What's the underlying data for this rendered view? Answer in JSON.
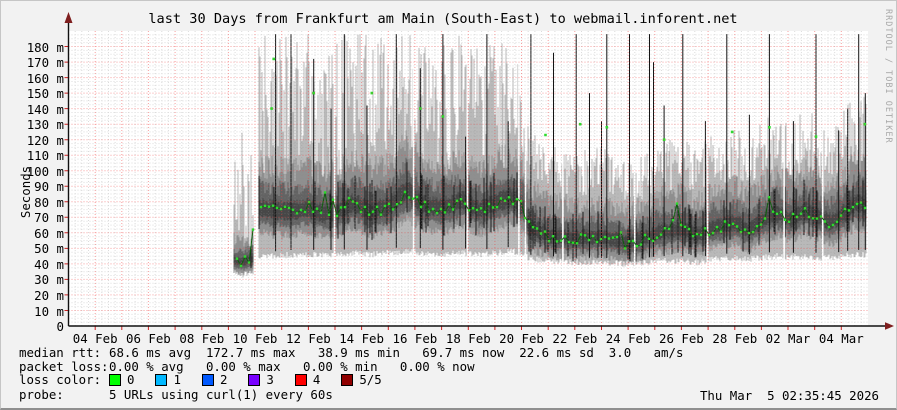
{
  "header": {
    "title": "last 30 Days from Frankfurt am Main (South-East) to webmail.inforent.net"
  },
  "watermark": "RRDTOOL / TOBI OETIKER",
  "footer": {
    "rows": [
      {
        "label": "median rtt:",
        "text": "68.6 ms avg  172.7 ms max   38.9 ms min   69.7 ms now  22.6 ms sd  3.0   am/s"
      },
      {
        "label": "packet loss:",
        "text": "0.00 % avg   0.00 % max   0.00 % min   0.00 % now"
      }
    ],
    "loss_color_label": "loss color:",
    "loss_colors": [
      {
        "label": "0",
        "color": "#00ff00"
      },
      {
        "label": "1",
        "color": "#00b8ff"
      },
      {
        "label": "2",
        "color": "#0059ff"
      },
      {
        "label": "3",
        "color": "#7800ff"
      },
      {
        "label": "4",
        "color": "#ff0000"
      },
      {
        "label": "5/5",
        "color": "#900000"
      }
    ],
    "probe_label": "probe:",
    "probe_text": "5 URLs using curl(1) every 60s",
    "timestamp": "Thu Mar  5 02:35:45 2026"
  },
  "chart_data": {
    "type": "area",
    "title": "last 30 Days from Frankfurt am Main (South-East) to webmail.inforent.net",
    "ylabel": "Seconds",
    "xlabel": "",
    "unit": "milliseconds",
    "ylim_ms": [
      0,
      190
    ],
    "x_window_days": 30,
    "grid": true,
    "y_ticks": [
      {
        "v": 180,
        "label": "180 m"
      },
      {
        "v": 170,
        "label": "170 m"
      },
      {
        "v": 160,
        "label": "160 m"
      },
      {
        "v": 150,
        "label": "150 m"
      },
      {
        "v": 140,
        "label": "140 m"
      },
      {
        "v": 130,
        "label": "130 m"
      },
      {
        "v": 120,
        "label": "120 m"
      },
      {
        "v": 110,
        "label": "110 m"
      },
      {
        "v": 100,
        "label": "100 m"
      },
      {
        "v": 90,
        "label": "90 m"
      },
      {
        "v": 80,
        "label": "80 m"
      },
      {
        "v": 70,
        "label": "70 m"
      },
      {
        "v": 60,
        "label": "60 m"
      },
      {
        "v": 50,
        "label": "50 m"
      },
      {
        "v": 40,
        "label": "40 m"
      },
      {
        "v": 30,
        "label": "30 m"
      },
      {
        "v": 20,
        "label": "20 m"
      },
      {
        "v": 10,
        "label": "10 m"
      },
      {
        "v": 0,
        "label": "0"
      }
    ],
    "x_ticks": [
      {
        "day": 1,
        "label": "04 Feb"
      },
      {
        "day": 3,
        "label": "06 Feb"
      },
      {
        "day": 5,
        "label": "08 Feb"
      },
      {
        "day": 7,
        "label": "10 Feb"
      },
      {
        "day": 9,
        "label": "12 Feb"
      },
      {
        "day": 11,
        "label": "14 Feb"
      },
      {
        "day": 13,
        "label": "16 Feb"
      },
      {
        "day": 15,
        "label": "18 Feb"
      },
      {
        "day": 17,
        "label": "20 Feb"
      },
      {
        "day": 19,
        "label": "22 Feb"
      },
      {
        "day": 21,
        "label": "24 Feb"
      },
      {
        "day": 23,
        "label": "26 Feb"
      },
      {
        "day": 25,
        "label": "28 Feb"
      },
      {
        "day": 27,
        "label": "02 Mar"
      },
      {
        "day": 29,
        "label": "04 Mar"
      }
    ],
    "stats": {
      "median_rtt_avg_ms": 68.6,
      "median_rtt_max_ms": 172.7,
      "median_rtt_min_ms": 38.9,
      "median_rtt_now_ms": 69.7,
      "median_rtt_sd_ms": 22.6,
      "rate": "3.0 am/s",
      "packet_loss_avg_pct": 0.0,
      "packet_loss_max_pct": 0.0,
      "packet_loss_min_pct": 0.0,
      "packet_loss_now_pct": 0.0
    },
    "series": {
      "anchors_note": "seg, day_from_window_start, median_ms, smoke_low_ms, smoke_high_ms, top_noise_ms, band_scale",
      "anchors": [
        [
          0,
          6.2,
          42,
          32,
          120,
          70,
          0.5
        ],
        [
          0,
          6.55,
          41,
          31,
          125,
          75,
          0.5
        ],
        [
          0,
          6.94,
          43,
          32,
          110,
          65,
          0.5
        ],
        [
          1,
          7.13,
          75,
          42,
          188,
          95,
          1
        ],
        [
          1,
          7.7,
          74,
          43,
          188,
          90,
          1
        ],
        [
          1,
          8.4,
          73,
          44,
          188,
          90,
          1
        ],
        [
          1,
          9.0,
          75,
          44,
          188,
          85,
          1
        ],
        [
          1,
          9.6,
          71,
          44,
          185,
          90,
          0.95
        ],
        [
          1,
          10.2,
          74,
          44,
          188,
          92,
          1
        ],
        [
          1,
          10.7,
          78,
          45,
          188,
          88,
          1
        ],
        [
          1,
          11.3,
          73,
          44,
          188,
          90,
          1
        ],
        [
          1,
          12.0,
          76,
          45,
          188,
          85,
          1
        ],
        [
          1,
          12.7,
          86,
          46,
          188,
          80,
          1.15
        ],
        [
          1,
          13.3,
          77,
          45,
          188,
          88,
          1
        ],
        [
          1,
          14.0,
          75,
          44,
          188,
          90,
          1
        ],
        [
          1,
          14.8,
          80,
          45,
          188,
          85,
          1
        ],
        [
          1,
          15.4,
          74,
          44,
          188,
          92,
          1
        ],
        [
          1,
          16.0,
          78,
          45,
          188,
          88,
          1
        ],
        [
          1,
          16.6,
          82,
          46,
          188,
          85,
          1.05
        ],
        [
          1,
          17.05,
          76,
          45,
          188,
          90,
          1
        ],
        [
          1,
          17.3,
          63,
          41,
          132,
          35,
          0.9
        ],
        [
          1,
          18.0,
          58,
          40,
          120,
          30,
          0.85
        ],
        [
          1,
          19.0,
          56,
          39,
          112,
          30,
          0.8
        ],
        [
          1,
          20.0,
          57,
          39,
          116,
          32,
          0.8
        ],
        [
          1,
          21.0,
          53,
          38,
          105,
          28,
          0.75
        ],
        [
          1,
          21.6,
          56,
          39,
          112,
          30,
          0.8
        ],
        [
          1,
          22.2,
          60,
          40,
          118,
          32,
          0.85
        ],
        [
          1,
          23.0,
          62,
          40,
          122,
          33,
          0.85
        ],
        [
          1,
          23.6,
          58,
          39,
          115,
          30,
          0.8
        ],
        [
          1,
          24.2,
          63,
          41,
          124,
          34,
          0.85
        ],
        [
          1,
          25.0,
          66,
          42,
          130,
          36,
          0.9
        ],
        [
          1,
          25.5,
          61,
          41,
          122,
          33,
          0.85
        ],
        [
          1,
          26.1,
          68,
          42,
          134,
          38,
          0.9
        ],
        [
          1,
          26.6,
          72,
          43,
          140,
          40,
          0.95
        ],
        [
          1,
          27.1,
          68,
          42,
          132,
          38,
          0.9
        ],
        [
          1,
          27.6,
          74,
          43,
          142,
          42,
          0.95
        ],
        [
          1,
          28.1,
          70,
          42,
          136,
          40,
          0.9
        ],
        [
          1,
          28.6,
          66,
          42,
          128,
          36,
          0.9
        ],
        [
          1,
          29.1,
          72,
          43,
          140,
          42,
          0.95
        ],
        [
          1,
          29.5,
          78,
          44,
          150,
          45,
          1
        ],
        [
          1,
          29.94,
          77,
          44,
          148,
          45,
          1
        ]
      ],
      "spikes": [
        [
          7.77,
          188
        ],
        [
          8.35,
          188
        ],
        [
          9.2,
          172
        ],
        [
          9.85,
          140
        ],
        [
          10.35,
          188
        ],
        [
          11.2,
          142
        ],
        [
          12.3,
          188
        ],
        [
          13.2,
          166
        ],
        [
          14.05,
          188
        ],
        [
          14.9,
          122
        ],
        [
          15.7,
          188
        ],
        [
          16.5,
          132
        ],
        [
          17.35,
          188
        ],
        [
          18.2,
          176
        ],
        [
          19.05,
          188
        ],
        [
          19.55,
          150
        ],
        [
          20.0,
          132
        ],
        [
          20.2,
          188
        ],
        [
          21.05,
          188
        ],
        [
          21.8,
          188
        ],
        [
          21.95,
          170
        ],
        [
          22.35,
          142
        ],
        [
          23.05,
          188
        ],
        [
          23.9,
          132
        ],
        [
          24.7,
          188
        ],
        [
          25.55,
          136
        ],
        [
          26.3,
          188
        ],
        [
          27.2,
          132
        ],
        [
          28.05,
          188
        ],
        [
          28.9,
          126
        ],
        [
          29.24,
          140
        ],
        [
          29.65,
          188
        ],
        [
          29.9,
          150
        ]
      ],
      "median_outliers": [
        [
          7.62,
          140
        ],
        [
          7.7,
          172
        ],
        [
          9.2,
          150
        ],
        [
          11.38,
          150
        ],
        [
          13.2,
          140
        ],
        [
          14.05,
          135
        ],
        [
          17.9,
          123
        ],
        [
          19.2,
          130
        ],
        [
          20.2,
          128
        ],
        [
          22.35,
          120
        ],
        [
          24.9,
          125
        ],
        [
          26.3,
          128
        ],
        [
          28.05,
          122
        ],
        [
          29.88,
          130
        ]
      ],
      "white_slits_days": [
        9.98,
        12.95,
        14.97,
        16.9,
        17.15,
        18.55,
        21.25,
        23.98,
        26.85,
        28.3
      ]
    },
    "colors": {
      "plot_bg": "#ffffff",
      "page_bg": "#f2f2f2",
      "smoke_light": "#b9b9b9",
      "smoke_mid": "#8f8f8f",
      "smoke_dark": "#636363",
      "smoke_core": "#474747",
      "smoke_black": "#1f1f1f",
      "median_line": "#0b5e0b",
      "median_dot": "#2bdc2b",
      "spike": "#141414",
      "grid_major": "#f04141",
      "grid_minor": "#8c8c8c",
      "axis": "#111111",
      "tick": "#cc2222",
      "arrow": "#7f1f1f"
    }
  }
}
